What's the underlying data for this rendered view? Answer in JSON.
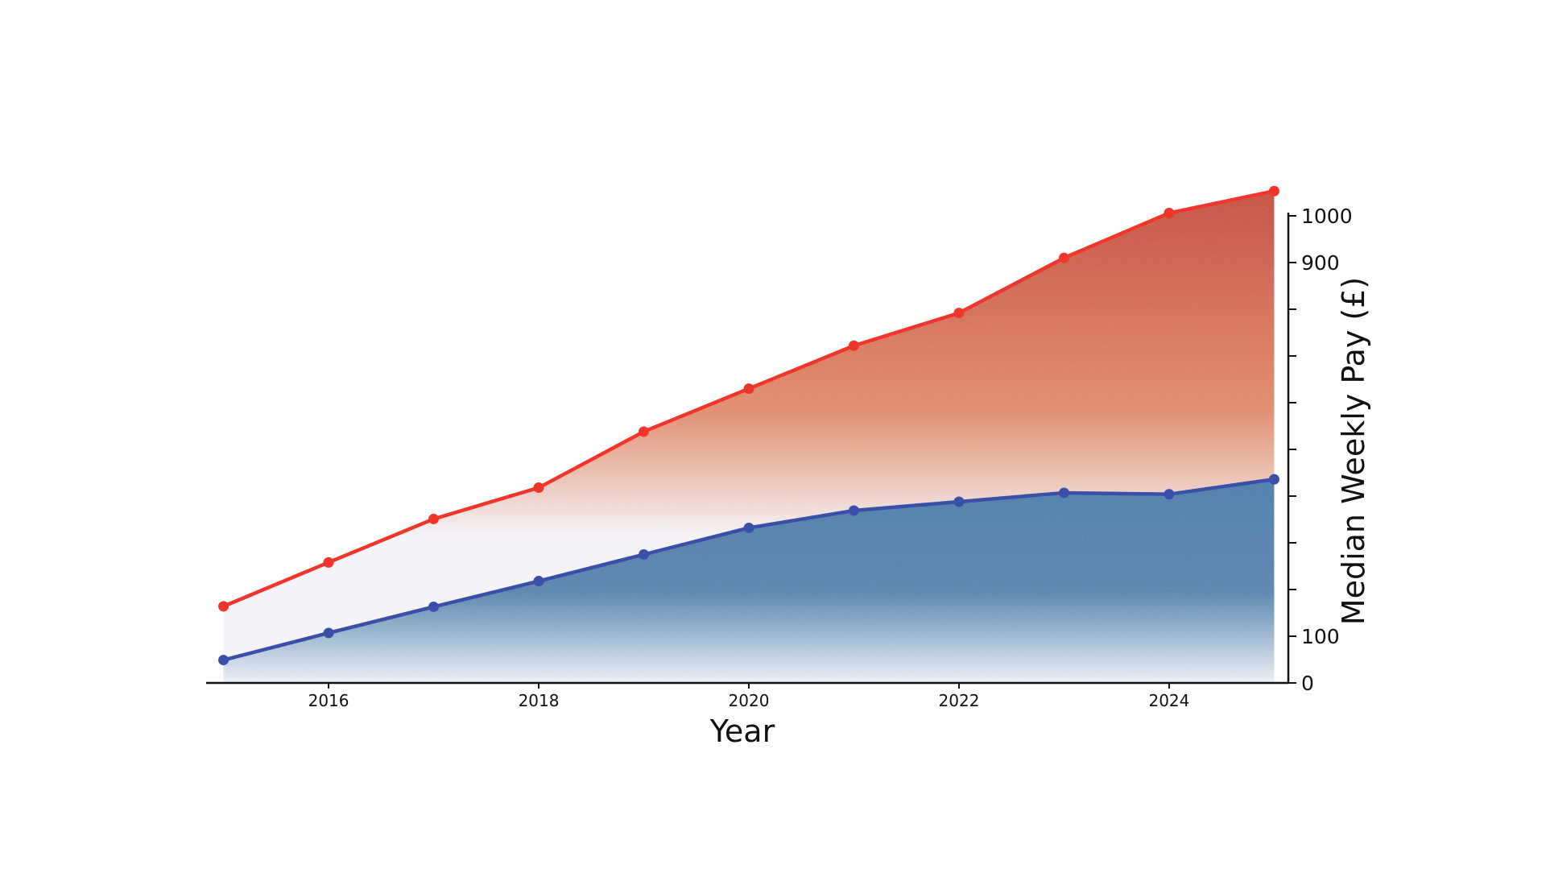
{
  "chart_data": {
    "type": "area",
    "title": "",
    "xlabel": "Year",
    "ylabel": "Median Weekly Pay (£)",
    "x": [
      2015,
      2016,
      2017,
      2018,
      2019,
      2020,
      2021,
      2022,
      2023,
      2024,
      2025
    ],
    "xticks": [
      2016,
      2018,
      2020,
      2022,
      2024
    ],
    "yticks": [
      0,
      100,
      200,
      300,
      400,
      500,
      600,
      700,
      800,
      900,
      1000
    ],
    "ytick_labels": [
      "0",
      "100",
      "",
      "",
      "",
      "",
      "",
      "",
      "",
      "900",
      "1000"
    ],
    "xlim": [
      2014.85,
      2025.15
    ],
    "ylim": [
      0,
      1000
    ],
    "grid": false,
    "series": [
      {
        "values": [
          164,
          258,
          351,
          418,
          538,
          630,
          722,
          792,
          910,
          1006,
          1053
        ],
        "color": "#f0352c",
        "fill_top": "#c4402a",
        "fill_bottom": "#f4f3f7"
      },
      {
        "values": [
          49,
          107,
          163,
          218,
          275,
          332,
          369,
          388,
          407,
          404,
          436
        ],
        "color": "#3a4fa8",
        "fill_top": "#3c78a8",
        "fill_bottom": "#eef0f6"
      }
    ]
  }
}
